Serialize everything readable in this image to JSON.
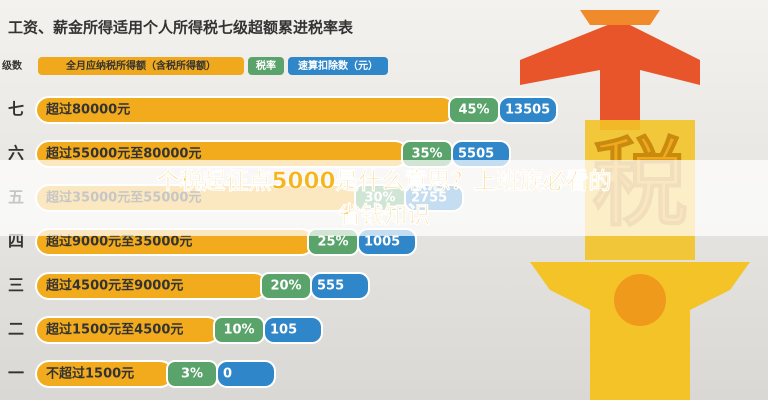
{
  "header": {
    "title": "工资、薪金所得适用个人所得税七级超额累进税率表"
  },
  "table": {
    "columns": [
      "级数",
      "全月应纳税所得额（含税所得额）",
      "税率",
      "速算扣除数（元）"
    ],
    "rows": [
      [
        "七",
        "超过80000元",
        "45%",
        "13505"
      ],
      [
        "六",
        "超过55000元至80000元",
        "35%",
        "5505"
      ],
      [
        "五",
        "超过35000元至55000元",
        "30%",
        "2755"
      ],
      [
        "四",
        "超过9000元至35000元",
        "25%",
        "1005"
      ],
      [
        "三",
        "超过4500元至9000元",
        "20%",
        "555"
      ],
      [
        "二",
        "超过1500元至4500元",
        "10%",
        "105"
      ],
      [
        "一",
        "不超过1500元",
        "3%",
        "0"
      ]
    ]
  },
  "illustration": {
    "character": "税"
  },
  "overlay": {
    "line1": "个税起征点5000是什么意思？上班族必看的",
    "line2": "省钱知识"
  }
}
